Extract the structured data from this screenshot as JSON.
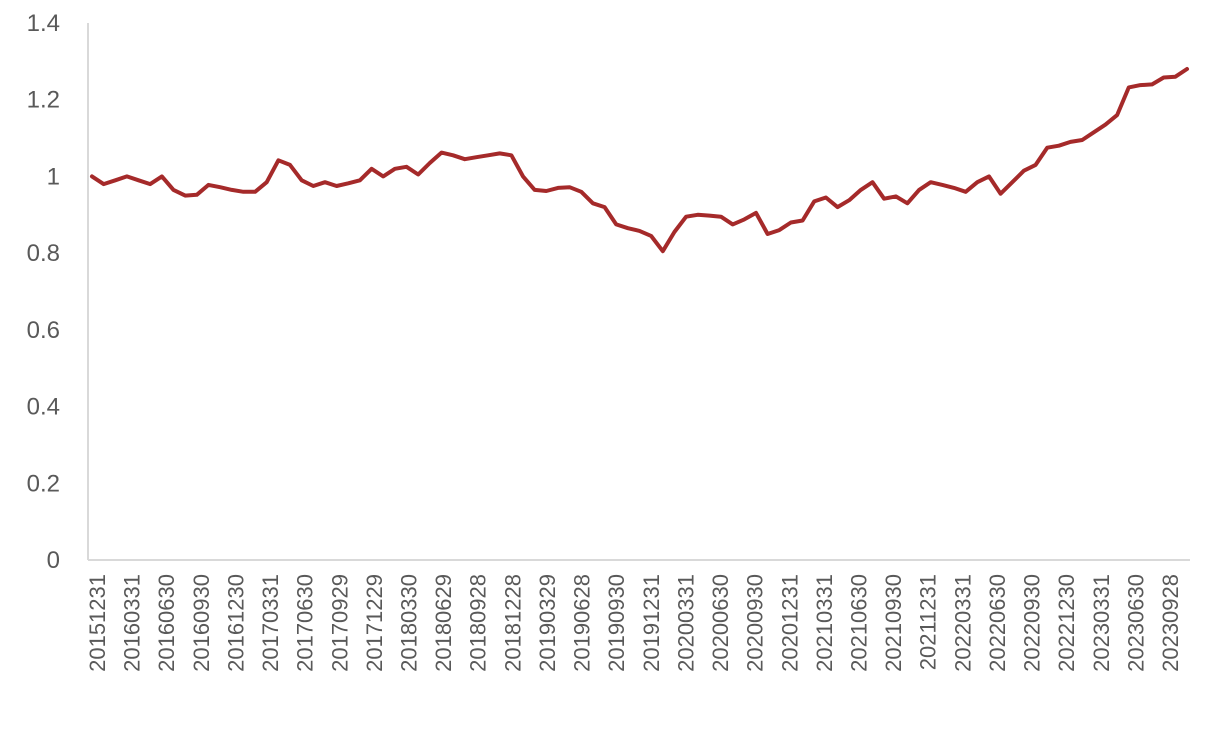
{
  "chart_data": {
    "type": "line",
    "title": "",
    "xlabel": "",
    "ylabel": "",
    "ylim": [
      0,
      1.4
    ],
    "yticks": [
      0,
      0.2,
      0.4,
      0.6,
      0.8,
      1,
      1.2,
      1.4
    ],
    "ytick_labels": [
      "0",
      "0.2",
      "0.4",
      "0.6",
      "0.8",
      "1",
      "1.2",
      "1.4"
    ],
    "grid": false,
    "legend": "none",
    "colors": {
      "line": "#a52a2a",
      "axis": "#d9d9d9",
      "text": "#595959"
    },
    "xtick_labels": [
      "20151231",
      "20160331",
      "20160630",
      "20160930",
      "20161230",
      "20170331",
      "20170630",
      "20170929",
      "20171229",
      "20180330",
      "20180629",
      "20180928",
      "20181228",
      "20190329",
      "20190628",
      "20190930",
      "20191231",
      "20200331",
      "20200630",
      "20200930",
      "20201231",
      "20210331",
      "20210630",
      "20210930",
      "20211231",
      "20220331",
      "20220630",
      "20220930",
      "20221230",
      "20230331",
      "20230630",
      "20230928"
    ],
    "series": [
      {
        "values": [
          1.0,
          0.98,
          0.99,
          1.0,
          0.99,
          0.98,
          1.0,
          0.965,
          0.95,
          0.952,
          0.978,
          0.972,
          0.965,
          0.96,
          0.96,
          0.985,
          1.042,
          1.03,
          0.99,
          0.975,
          0.985,
          0.975,
          0.982,
          0.99,
          1.02,
          1.0,
          1.02,
          1.025,
          1.005,
          1.035,
          1.062,
          1.055,
          1.045,
          1.05,
          1.055,
          1.06,
          1.055,
          1.0,
          0.965,
          0.962,
          0.97,
          0.972,
          0.96,
          0.93,
          0.92,
          0.875,
          0.865,
          0.858,
          0.845,
          0.805,
          0.855,
          0.895,
          0.9,
          0.898,
          0.895,
          0.875,
          0.888,
          0.905,
          0.85,
          0.86,
          0.88,
          0.885,
          0.935,
          0.945,
          0.92,
          0.938,
          0.965,
          0.985,
          0.942,
          0.948,
          0.93,
          0.965,
          0.985,
          0.978,
          0.97,
          0.96,
          0.985,
          1.0,
          0.955,
          0.985,
          1.015,
          1.03,
          1.075,
          1.08,
          1.09,
          1.095,
          1.115,
          1.135,
          1.16,
          1.232,
          1.238,
          1.24,
          1.258,
          1.26,
          1.28
        ]
      }
    ]
  }
}
